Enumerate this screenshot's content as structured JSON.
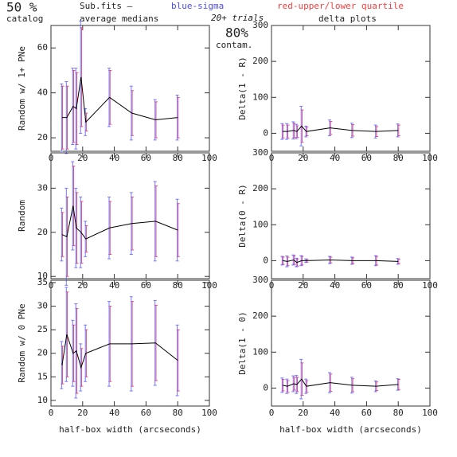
{
  "header": {
    "percent": "50 %",
    "catalog": "catalog",
    "file": "Sub.fits –",
    "medians": "average medians",
    "sigma_note": "blue-sigma",
    "quartile_note": "red-upper/lower quartile",
    "trials": "20+ trials",
    "contam_percent": "80%",
    "contam": "contam.",
    "delta": "delta plots"
  },
  "chart_data": [
    {
      "type": "line",
      "ylabel": "Random w/ 1+ PNe",
      "x": [
        7,
        10,
        14,
        16,
        19,
        22,
        37,
        51,
        66,
        80
      ],
      "values": [
        29,
        29,
        34,
        33,
        47,
        27,
        38,
        31,
        28,
        29
      ],
      "sigma": [
        15,
        16,
        17,
        18,
        25,
        6,
        13,
        12,
        9,
        10
      ],
      "iqr": [
        14,
        14,
        16,
        16,
        22,
        4,
        12,
        10,
        8,
        9
      ],
      "xlim": [
        0,
        100
      ],
      "ylim": [
        14,
        70
      ],
      "xticks": [
        0,
        20,
        40,
        60,
        80,
        100
      ],
      "yticks": [
        20,
        40,
        60
      ],
      "color": "#000000",
      "sigma_color": "#6a6aff",
      "iqr_color": "#e0407a"
    },
    {
      "type": "line",
      "ylabel": "Delta(1 - R)",
      "x": [
        7,
        10,
        14,
        16,
        19,
        22,
        37,
        51,
        66,
        80
      ],
      "values": [
        5,
        5,
        8,
        5,
        20,
        5,
        15,
        8,
        5,
        8
      ],
      "sigma": [
        22,
        22,
        24,
        20,
        55,
        15,
        22,
        20,
        18,
        18
      ],
      "iqr": [
        18,
        18,
        20,
        16,
        45,
        12,
        18,
        16,
        14,
        15
      ],
      "xlim": [
        0,
        100
      ],
      "ylim": [
        -50,
        300
      ],
      "xticks": [
        0,
        20,
        40,
        60,
        80,
        100
      ],
      "yticks": [
        0,
        100,
        200,
        300
      ],
      "color": "#000000",
      "sigma_color": "#6a6aff",
      "iqr_color": "#e0407a"
    },
    {
      "type": "line",
      "ylabel": "Random",
      "x": [
        7,
        10,
        14,
        16,
        19,
        22,
        37,
        51,
        66,
        80
      ],
      "values": [
        19.5,
        19,
        26,
        21,
        20,
        18.5,
        21,
        22,
        22.5,
        20.5
      ],
      "sigma": [
        6,
        11,
        10,
        9,
        8,
        4,
        7,
        7,
        9,
        7
      ],
      "iqr": [
        5,
        9,
        9,
        8,
        7,
        3,
        6,
        6,
        8,
        6
      ],
      "xlim": [
        0,
        100
      ],
      "ylim": [
        9.5,
        38
      ],
      "xticks": [
        0,
        20,
        40,
        60,
        80,
        100
      ],
      "yticks": [
        10,
        20,
        30
      ],
      "color": "#000000",
      "sigma_color": "#6a6aff",
      "iqr_color": "#e0407a"
    },
    {
      "type": "line",
      "ylabel": "Delta(0 - R)",
      "x": [
        7,
        10,
        14,
        16,
        19,
        22,
        37,
        51,
        66,
        80
      ],
      "values": [
        0,
        -2,
        2,
        -5,
        0,
        0,
        2,
        0,
        0,
        -2
      ],
      "sigma": [
        12,
        15,
        14,
        12,
        14,
        5,
        10,
        10,
        14,
        8
      ],
      "iqr": [
        10,
        12,
        12,
        10,
        12,
        4,
        8,
        8,
        12,
        6
      ],
      "xlim": [
        0,
        100
      ],
      "ylim": [
        -50,
        300
      ],
      "xticks": [
        0,
        20,
        40,
        60,
        80,
        100
      ],
      "yticks": [
        0,
        100,
        200,
        300
      ],
      "color": "#000000",
      "sigma_color": "#6a6aff",
      "iqr_color": "#e0407a"
    },
    {
      "type": "line",
      "ylabel": "Random w/ 0 PNe",
      "xlabel": "half-box width (arcseconds)",
      "x": [
        7,
        10,
        14,
        16,
        19,
        22,
        37,
        51,
        66,
        80
      ],
      "values": [
        17.5,
        24,
        20,
        20.5,
        17,
        20,
        22,
        22,
        22.2,
        18.5
      ],
      "sigma": [
        5,
        10,
        7,
        10,
        5,
        6,
        9,
        10,
        9,
        7.5
      ],
      "iqr": [
        4,
        9,
        6,
        9,
        4,
        5,
        8,
        9,
        8,
        6.5
      ],
      "xlim": [
        0,
        100
      ],
      "ylim": [
        8.8,
        35.5
      ],
      "xticks": [
        0,
        20,
        40,
        60,
        80,
        100
      ],
      "yticks": [
        10,
        15,
        20,
        25,
        30,
        35
      ],
      "color": "#000000",
      "sigma_color": "#6a6aff",
      "iqr_color": "#e0407a"
    },
    {
      "type": "line",
      "ylabel": "Delta(1 - 0)",
      "xlabel": "half-box width (arcseconds)",
      "x": [
        7,
        10,
        14,
        16,
        19,
        22,
        37,
        51,
        66,
        80
      ],
      "values": [
        8,
        5,
        12,
        10,
        25,
        5,
        15,
        8,
        5,
        10
      ],
      "sigma": [
        20,
        20,
        22,
        25,
        55,
        20,
        28,
        22,
        15,
        16
      ],
      "iqr": [
        16,
        16,
        18,
        20,
        45,
        16,
        24,
        18,
        12,
        14
      ],
      "xlim": [
        0,
        100
      ],
      "ylim": [
        -50,
        300
      ],
      "xticks": [
        0,
        20,
        40,
        60,
        80,
        100
      ],
      "yticks": [
        0,
        100,
        200,
        300
      ],
      "color": "#000000",
      "sigma_color": "#6a6aff",
      "iqr_color": "#e0407a"
    }
  ]
}
